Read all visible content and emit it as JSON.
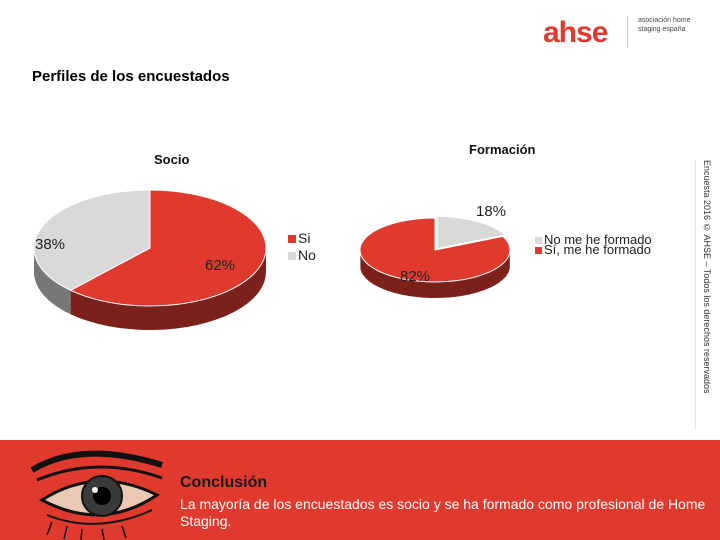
{
  "header": {
    "logo_text": "ahse",
    "logo_sub": "asociación home staging españa",
    "page_title": "Perfiles de los encuestados"
  },
  "side_note": "Encuesta 2016 © AHSE – Todos los derechos reservados",
  "chart_data": [
    {
      "type": "pie",
      "title": "Socio",
      "categories": [
        "Si",
        "No"
      ],
      "values": [
        62,
        38
      ],
      "labels": [
        "62%",
        "38%"
      ],
      "colors": [
        "#e03a2f",
        "#d9d9d9"
      ],
      "legend": "right"
    },
    {
      "type": "pie",
      "title": "Formación",
      "categories": [
        "No me he formado",
        "Sí, me he formado"
      ],
      "values": [
        18,
        82
      ],
      "labels": [
        "18%",
        "82%"
      ],
      "colors": [
        "#d9d9d9",
        "#e03a2f"
      ],
      "legend": "right"
    }
  ],
  "footer": {
    "title": "Conclusión",
    "text": "La mayoría de los encuestados es socio y se ha formado como profesional de Home Staging."
  },
  "colors": {
    "accent": "#e03a2f",
    "accent_dark": "#7a1512",
    "grey": "#d9d9d9",
    "grey_dark": "#8f8f8f"
  },
  "icons": [
    "eye-illustration"
  ]
}
